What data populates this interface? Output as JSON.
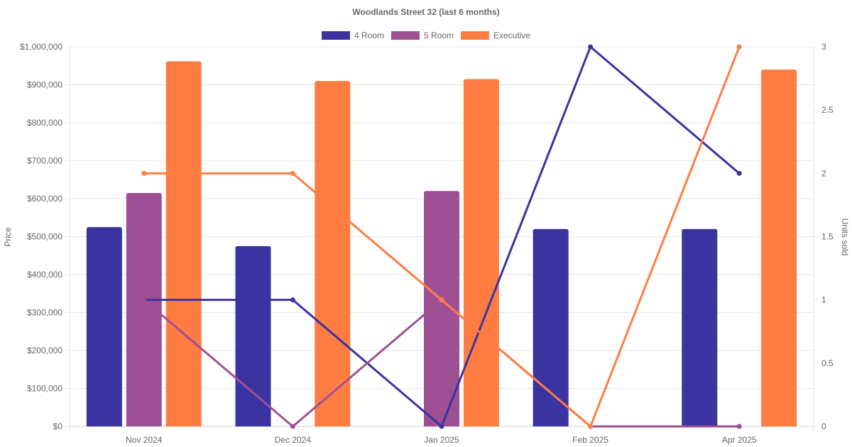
{
  "chart_data": {
    "type": "bar",
    "title": "Woodlands Street 32 (last 6 months)",
    "categories": [
      "Nov 2024",
      "Dec 2024",
      "Jan 2025",
      "Feb 2025",
      "Apr 2025"
    ],
    "y_left": {
      "label": "Price",
      "ylim": [
        0,
        1000000
      ],
      "ticks": [
        0,
        100000,
        200000,
        300000,
        400000,
        500000,
        600000,
        700000,
        800000,
        900000,
        1000000
      ],
      "tick_labels": [
        "$0",
        "$100,000",
        "$200,000",
        "$300,000",
        "$400,000",
        "$500,000",
        "$600,000",
        "$700,000",
        "$800,000",
        "$900,000",
        "$1,000,000"
      ]
    },
    "y_right": {
      "label": "Units sold",
      "ylim": [
        0,
        3
      ],
      "ticks": [
        0,
        0.5,
        1,
        1.5,
        2,
        2.5,
        3
      ],
      "tick_labels": [
        "0",
        "0.5",
        "1",
        "1.5",
        "2",
        "2.5",
        "3"
      ]
    },
    "grid": true,
    "legend": {
      "position": "top"
    },
    "series": [
      {
        "name": "4 Room",
        "color": "#3a33a0",
        "price": [
          525000,
          475000,
          null,
          520000,
          520000
        ],
        "units": [
          1,
          1,
          0,
          3,
          2
        ]
      },
      {
        "name": "5 Room",
        "color": "#9f5094",
        "price": [
          615000,
          null,
          620000,
          null,
          null
        ],
        "units": [
          1,
          0,
          1,
          0,
          0
        ]
      },
      {
        "name": "Executive",
        "color": "#ff7d43",
        "price": [
          962000,
          910000,
          915000,
          null,
          940000
        ],
        "units": [
          2,
          2,
          1,
          0,
          3
        ]
      }
    ]
  }
}
